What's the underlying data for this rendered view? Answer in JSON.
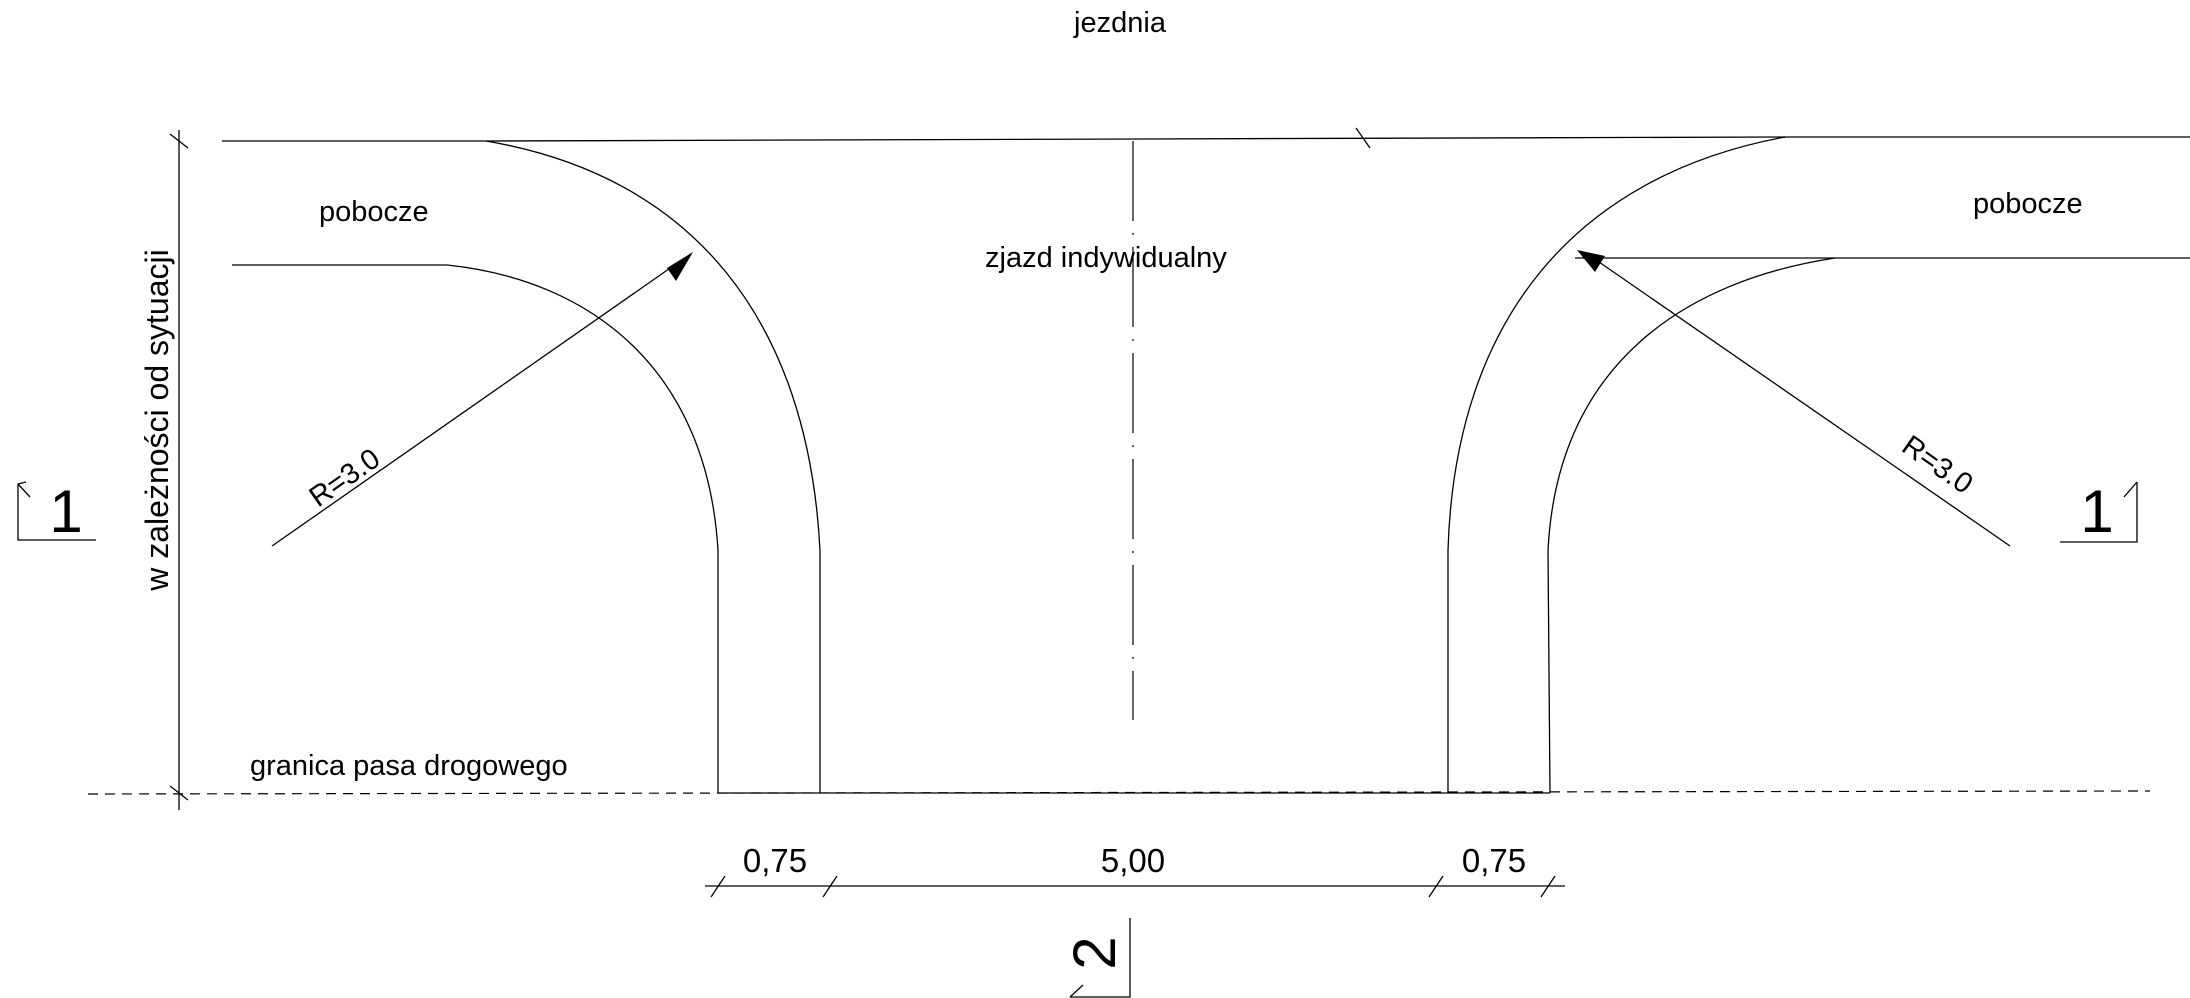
{
  "labels": {
    "roadway": "jezdnia",
    "shoulder_left": "pobocze",
    "shoulder_right": "pobocze",
    "driveway": "zjazd indywidualny",
    "vertical_dimension": "w zależności od sytuacji",
    "boundary": "granica pasa drogowego",
    "radius_left": "R=3.0",
    "radius_right": "R=3.0"
  },
  "dimensions": {
    "left_edge": "0,75",
    "center": "5,00",
    "right_edge": "0,75"
  },
  "section_marks": {
    "left": "1",
    "right": "1",
    "bottom": "2"
  }
}
